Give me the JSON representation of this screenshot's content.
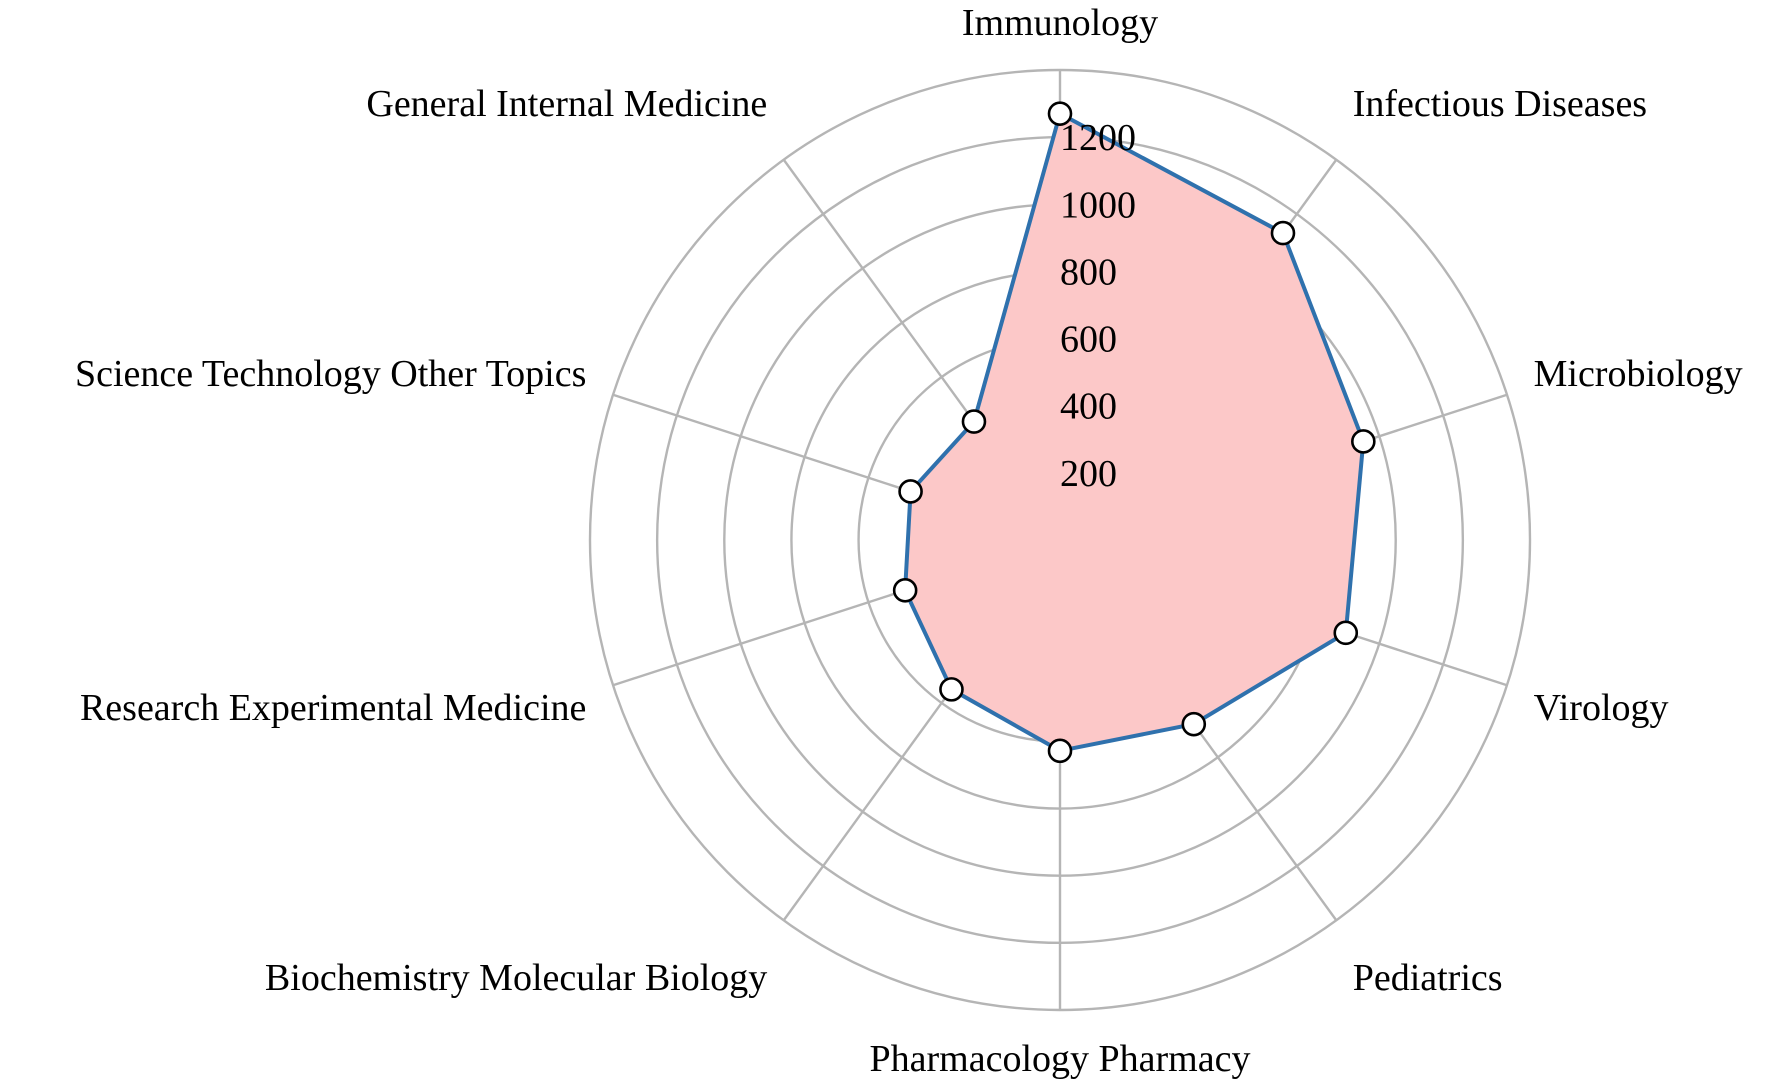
{
  "chart_data": {
    "type": "radar",
    "categories": [
      "Immunology",
      "Infectious Diseases",
      "Microbiology",
      "Virology",
      "Pediatrics",
      "Pharmacology Pharmacy",
      "Biochemistry Molecular Biology",
      "Research Experimental Medicine",
      "Science Technology Other Topics",
      "General Internal Medicine"
    ],
    "series": [
      {
        "values": [
          1270,
          1130,
          950,
          895,
          678,
          628,
          550,
          485,
          468,
          436
        ]
      }
    ],
    "rlim": [
      0,
      1400
    ],
    "radial_ticks": [
      200,
      400,
      600,
      800,
      1000,
      1200
    ],
    "radial_tick_labels": [
      "200",
      "400",
      "600",
      "800",
      "1000",
      "1200"
    ],
    "grid": true,
    "legend": false,
    "colors": {
      "fill": "#fcc8c8",
      "line": "#2f71ad",
      "marker_fill": "#ffffff",
      "marker_edge": "#000000",
      "grid": "#b5b5b5"
    }
  }
}
